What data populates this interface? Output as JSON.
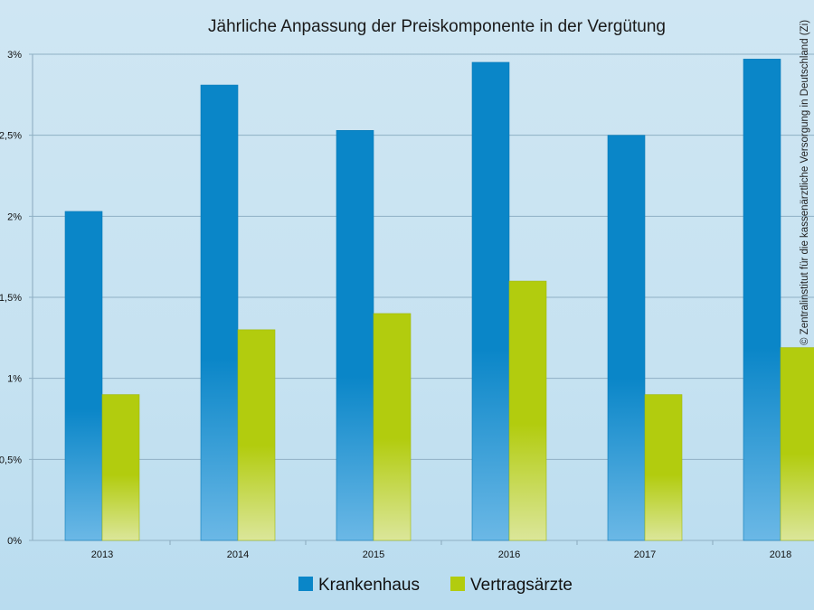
{
  "chart_data": {
    "type": "bar",
    "title": "Jährliche  Anpassung der Preiskomponente in der Vergütung",
    "categories": [
      "2013",
      "2014",
      "2015",
      "2016",
      "2017",
      "2018"
    ],
    "series": [
      {
        "name": "Krankenhaus",
        "values": [
          2.03,
          2.81,
          2.53,
          2.95,
          2.5,
          2.97
        ],
        "color": "#0a86c8"
      },
      {
        "name": "Vertragsärzte",
        "values": [
          0.9,
          1.3,
          1.4,
          1.6,
          0.9,
          1.19
        ],
        "color": "#b2cc0e"
      }
    ],
    "ylim": [
      0,
      3
    ],
    "yticks": [
      0,
      0.5,
      1,
      1.5,
      2,
      2.5,
      3
    ],
    "ytick_labels": [
      "0%",
      "0,5%",
      "1%",
      "1,5%",
      "2%",
      "2,5%",
      "3%"
    ],
    "grid": true,
    "legend": "bottom",
    "xlabel": "",
    "ylabel": ""
  },
  "copyright": "© Zentralinstitut für die kassenärztliche Versorgung in Deutschland (Zi)"
}
